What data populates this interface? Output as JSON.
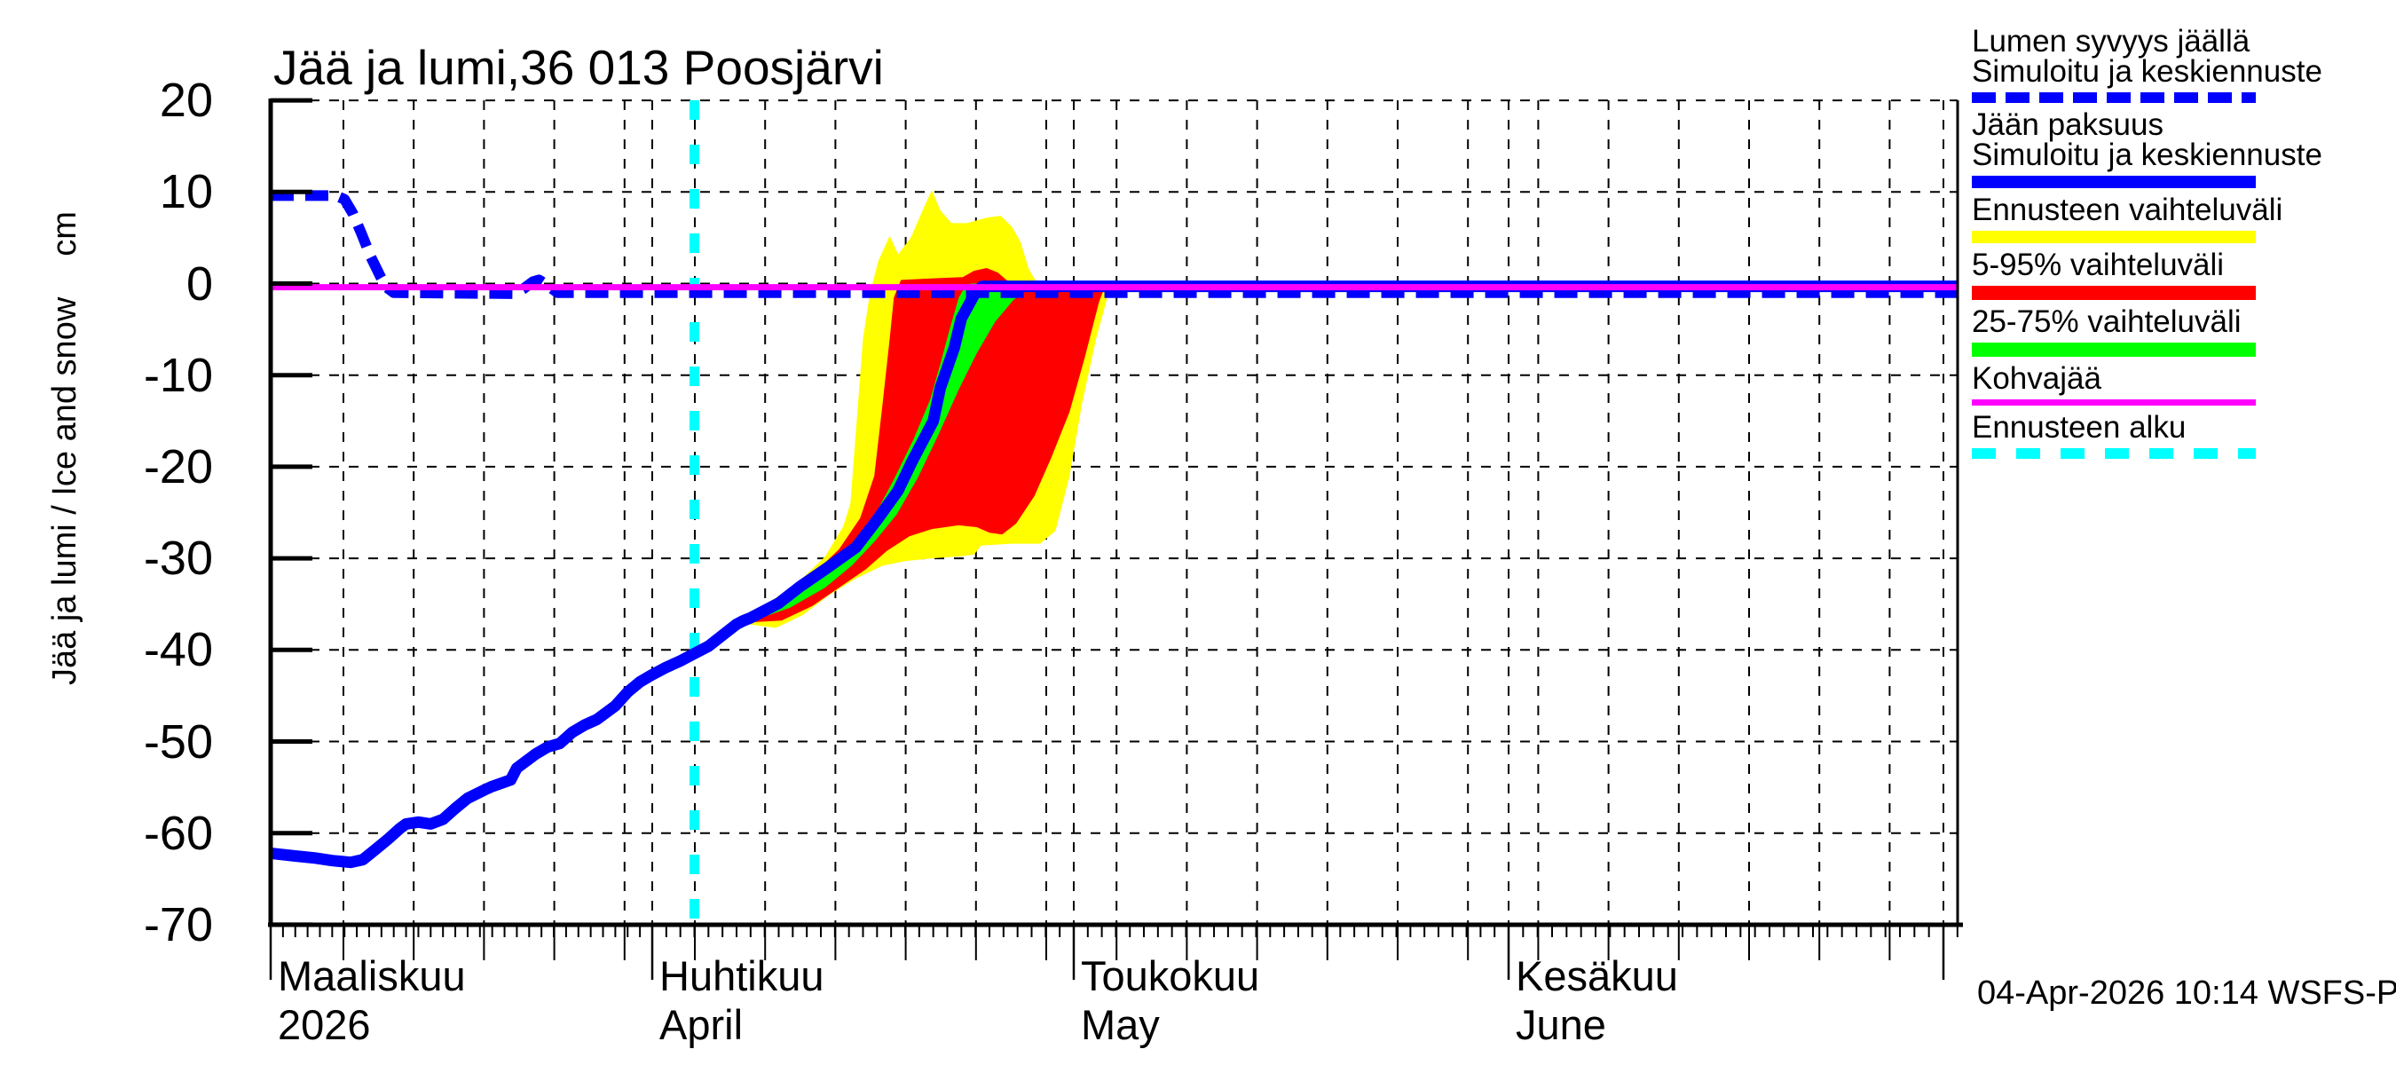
{
  "footer": {
    "timestamp": "04-Apr-2026 10:14 WSFS-P"
  },
  "chart_data": {
    "type": "line",
    "title": "Jää ja lumi,36 013 Poosjärvi",
    "ylabel": "Jää ja lumi / Ice and snow",
    "ylabel_unit": "cm",
    "ylim": [
      -70,
      20
    ],
    "y_ticks": [
      20,
      10,
      0,
      -10,
      -20,
      -30,
      -40,
      -50,
      -60,
      -70
    ],
    "grid": "dashed",
    "x_months": [
      {
        "label": "Maaliskuu",
        "sub": "2026",
        "m": 3
      },
      {
        "label": "Huhtikuu",
        "sub": "April",
        "m": 4
      },
      {
        "label": "Toukokuu",
        "sub": "May",
        "m": 5
      },
      {
        "label": "Kesäkuu",
        "sub": "June",
        "m": 6
      }
    ],
    "forecast_start": {
      "m": 4,
      "d": 4
    },
    "kohvajaa_level_cm": -0.4,
    "colors": {
      "ice": "#0000ff",
      "snow": "#0000ff",
      "range": "#ffff00",
      "p5_95": "#ff0000",
      "p25_75": "#00ff00",
      "kohvajaa": "#ff00ff",
      "forecast_start": "#00ffff",
      "grid": "#000000"
    },
    "series": {
      "snow_depth": {
        "name": "Lumen syvyys jäällä",
        "style": "dashed",
        "points": [
          [
            3,
            1,
            9.6
          ],
          [
            3,
            6.3,
            9.6
          ],
          [
            3,
            7,
            9.2
          ],
          [
            3,
            7.7,
            7.6
          ],
          [
            3,
            8.4,
            5.4
          ],
          [
            3,
            9.1,
            3.0
          ],
          [
            3,
            9.9,
            0.8
          ],
          [
            3,
            10.4,
            -0.4
          ],
          [
            3,
            11,
            -1.0
          ],
          [
            3,
            20.8,
            -1.1
          ],
          [
            3,
            21.5,
            -0.6
          ],
          [
            3,
            22.3,
            0.2
          ],
          [
            3,
            22.8,
            0.4
          ],
          [
            3,
            23.5,
            -0.2
          ],
          [
            3,
            24.3,
            -1.0
          ],
          [
            7,
            2,
            -1.0
          ]
        ]
      },
      "ice_thickness": {
        "name": "Jään paksuus",
        "style": "solid",
        "points": [
          [
            3,
            1,
            -62.2
          ],
          [
            3,
            3,
            -62.5
          ],
          [
            3,
            4.5,
            -62.7
          ],
          [
            3,
            6,
            -63.0
          ],
          [
            3,
            7.5,
            -63.2
          ],
          [
            3,
            8.5,
            -62.9
          ],
          [
            3,
            9.5,
            -61.8
          ],
          [
            3,
            10.5,
            -60.7
          ],
          [
            3,
            11.5,
            -59.5
          ],
          [
            3,
            12,
            -59.0
          ],
          [
            3,
            13,
            -58.8
          ],
          [
            3,
            14,
            -59.0
          ],
          [
            3,
            15,
            -58.5
          ],
          [
            3,
            16,
            -57.3
          ],
          [
            3,
            17,
            -56.2
          ],
          [
            3,
            18.5,
            -55.2
          ],
          [
            3,
            19,
            -54.9
          ],
          [
            3,
            20.5,
            -54.2
          ],
          [
            3,
            21,
            -52.9
          ],
          [
            3,
            22.5,
            -51.4
          ],
          [
            3,
            23.5,
            -50.6
          ],
          [
            3,
            24.5,
            -50.2
          ],
          [
            3,
            25.5,
            -49.0
          ],
          [
            3,
            26.5,
            -48.2
          ],
          [
            3,
            27.5,
            -47.6
          ],
          [
            3,
            29,
            -46.1
          ],
          [
            3,
            30,
            -44.6
          ],
          [
            3,
            31,
            -43.5
          ],
          [
            4,
            1,
            -42.7
          ],
          [
            4,
            2,
            -41.9
          ],
          [
            4,
            3,
            -41.2
          ],
          [
            4,
            4,
            -40.4
          ],
          [
            4,
            5,
            -39.6
          ],
          [
            4,
            6,
            -38.4
          ],
          [
            4,
            7,
            -37.2
          ],
          [
            4,
            7.5,
            -36.8
          ],
          [
            4,
            8,
            -36.5
          ],
          [
            4,
            10,
            -34.9
          ],
          [
            4,
            11.5,
            -33.1
          ],
          [
            4,
            13.5,
            -31.0
          ],
          [
            4,
            15.5,
            -28.8
          ],
          [
            4,
            17,
            -25.8
          ],
          [
            4,
            18.5,
            -22.6
          ],
          [
            4,
            19.5,
            -19.4
          ],
          [
            4,
            21,
            -15.0
          ],
          [
            4,
            21.5,
            -11.4
          ],
          [
            4,
            22.5,
            -7.0
          ],
          [
            4,
            23,
            -3.8
          ],
          [
            4,
            24,
            -1.0
          ],
          [
            4,
            24.5,
            -0.3
          ],
          [
            7,
            2,
            -0.3
          ]
        ]
      }
    },
    "bands": {
      "range": {
        "name": "Ennusteen vaihteluväli",
        "upper": [
          [
            4,
            7.8,
            -36.3
          ],
          [
            4,
            9.5,
            -34.6
          ],
          [
            4,
            11.4,
            -32.6
          ],
          [
            4,
            13.3,
            -29.8
          ],
          [
            4,
            14.6,
            -26.5
          ],
          [
            4,
            15.1,
            -24.0
          ],
          [
            4,
            15.5,
            -16.0
          ],
          [
            4,
            16,
            -6.0
          ],
          [
            4,
            16.5,
            -1.0
          ],
          [
            4,
            17.1,
            2.5
          ],
          [
            4,
            17.9,
            5.2
          ],
          [
            4,
            18.5,
            3.2
          ],
          [
            4,
            19.4,
            5.0
          ],
          [
            4,
            20.3,
            8.2
          ],
          [
            4,
            20.9,
            10.2
          ],
          [
            4,
            21.5,
            8.0
          ],
          [
            4,
            22.3,
            6.6
          ],
          [
            4,
            23.4,
            6.6
          ],
          [
            4,
            24.8,
            7.2
          ],
          [
            4,
            25.8,
            7.4
          ],
          [
            4,
            26.6,
            6.2
          ],
          [
            4,
            27.2,
            4.6
          ],
          [
            4,
            27.8,
            1.6
          ],
          [
            4,
            28.4,
            0.0
          ],
          [
            5,
            4,
            0.0
          ]
        ],
        "lower": [
          [
            4,
            7.8,
            -37.2
          ],
          [
            4,
            9.8,
            -37.6
          ],
          [
            4,
            11.7,
            -36.2
          ],
          [
            4,
            13.6,
            -34.0
          ],
          [
            4,
            15.5,
            -32.2
          ],
          [
            4,
            17.4,
            -30.8
          ],
          [
            4,
            19,
            -30.3
          ],
          [
            4,
            20.9,
            -30.0
          ],
          [
            4,
            22.8,
            -29.8
          ],
          [
            4,
            23.9,
            -29.6
          ],
          [
            4,
            24.4,
            -28.6
          ],
          [
            4,
            26.6,
            -28.4
          ],
          [
            4,
            28.6,
            -28.4
          ],
          [
            4,
            29.7,
            -27.0
          ],
          [
            4,
            30.7,
            -21.0
          ],
          [
            5,
            1.6,
            -13.0
          ],
          [
            5,
            2.6,
            -6.0
          ],
          [
            5,
            3.4,
            -1.5
          ],
          [
            5,
            4,
            0.0
          ]
        ]
      },
      "p5_95": {
        "name": "5-95% vaihteluväli",
        "upper": [
          [
            4,
            7.9,
            -36.4
          ],
          [
            4,
            10.2,
            -34.4
          ],
          [
            4,
            12.4,
            -31.8
          ],
          [
            4,
            14.3,
            -29.0
          ],
          [
            4,
            15.8,
            -25.6
          ],
          [
            4,
            16.8,
            -21.0
          ],
          [
            4,
            17.4,
            -13.0
          ],
          [
            4,
            17.9,
            -6.0
          ],
          [
            4,
            18.2,
            -1.5
          ],
          [
            4,
            18.7,
            0.4
          ],
          [
            4,
            21.5,
            0.6
          ],
          [
            4,
            23.1,
            0.7
          ],
          [
            4,
            23.9,
            1.4
          ],
          [
            4,
            24.8,
            1.7
          ],
          [
            4,
            25.6,
            1.2
          ],
          [
            4,
            26.2,
            0.4
          ],
          [
            4,
            26.7,
            0.0
          ],
          [
            5,
            3.3,
            0.0
          ]
        ],
        "lower": [
          [
            4,
            7.9,
            -37.0
          ],
          [
            4,
            10.2,
            -36.8
          ],
          [
            4,
            12.4,
            -35.2
          ],
          [
            4,
            14.3,
            -33.2
          ],
          [
            4,
            16.2,
            -31.2
          ],
          [
            4,
            17.7,
            -29.2
          ],
          [
            4,
            19.3,
            -27.6
          ],
          [
            4,
            20.9,
            -26.8
          ],
          [
            4,
            22.8,
            -26.4
          ],
          [
            4,
            24.1,
            -26.6
          ],
          [
            4,
            25,
            -27.2
          ],
          [
            4,
            25.9,
            -27.4
          ],
          [
            4,
            26.9,
            -26.2
          ],
          [
            4,
            28.2,
            -23.2
          ],
          [
            4,
            29.4,
            -19.0
          ],
          [
            4,
            30.7,
            -14.0
          ],
          [
            5,
            1.8,
            -8.0
          ],
          [
            5,
            2.8,
            -2.0
          ],
          [
            5,
            3.3,
            0.0
          ]
        ]
      },
      "p25_75": {
        "name": "25-75% vaihteluväli",
        "upper": [
          [
            4,
            8,
            -36.3
          ],
          [
            4,
            10.8,
            -34.2
          ],
          [
            4,
            13.3,
            -31.6
          ],
          [
            4,
            15.2,
            -28.9
          ],
          [
            4,
            16.8,
            -25.4
          ],
          [
            4,
            18.2,
            -21.4
          ],
          [
            4,
            19.6,
            -17.0
          ],
          [
            4,
            20.8,
            -12.6
          ],
          [
            4,
            21.5,
            -8.8
          ],
          [
            4,
            22.2,
            -4.8
          ],
          [
            4,
            22.8,
            -1.6
          ],
          [
            4,
            23.3,
            -0.2
          ],
          [
            4,
            23.7,
            0.0
          ],
          [
            4,
            28.4,
            0.0
          ]
        ],
        "lower": [
          [
            4,
            8,
            -36.9
          ],
          [
            4,
            10.8,
            -35.4
          ],
          [
            4,
            13.3,
            -33.2
          ],
          [
            4,
            15.2,
            -30.8
          ],
          [
            4,
            16.8,
            -28.2
          ],
          [
            4,
            18.4,
            -25.2
          ],
          [
            4,
            19.9,
            -21.2
          ],
          [
            4,
            21.4,
            -16.4
          ],
          [
            4,
            22.8,
            -11.6
          ],
          [
            4,
            24.1,
            -7.6
          ],
          [
            4,
            25.4,
            -4.2
          ],
          [
            4,
            26.7,
            -1.8
          ],
          [
            4,
            27.7,
            -0.6
          ],
          [
            4,
            28.4,
            0.0
          ]
        ]
      }
    }
  },
  "legend": {
    "entries": [
      {
        "lines": [
          "Lumen syvyys jäällä",
          "Simuloitu ja keskiennuste"
        ],
        "color": "#0000ff",
        "style": "dashed",
        "height": 12
      },
      {
        "lines": [
          "Jään paksuus",
          "Simuloitu ja keskiennuste"
        ],
        "color": "#0000ff",
        "style": "solid",
        "height": 14
      },
      {
        "lines": [
          "Ennusteen vaihteluväli"
        ],
        "color": "#ffff00",
        "style": "solid",
        "height": 14
      },
      {
        "lines": [
          "5-95% vaihteluväli"
        ],
        "color": "#ff0000",
        "style": "solid",
        "height": 16
      },
      {
        "lines": [
          "25-75% vaihteluväli"
        ],
        "color": "#00ff00",
        "style": "solid",
        "height": 16
      },
      {
        "lines": [
          "Kohvajää"
        ],
        "color": "#ff00ff",
        "style": "solid",
        "height": 7
      },
      {
        "lines": [
          "Ennusteen alku"
        ],
        "color": "#00ffff",
        "style": "dashed",
        "height": 12
      }
    ]
  }
}
